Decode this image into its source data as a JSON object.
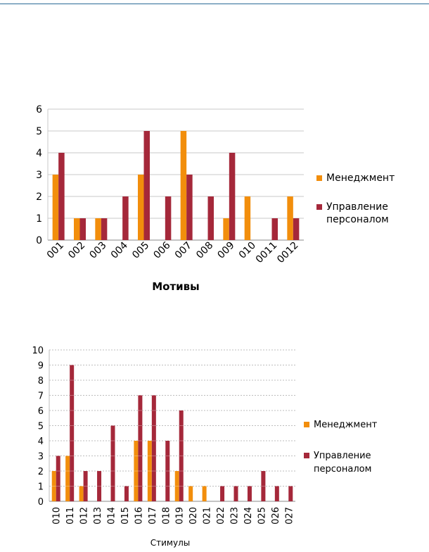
{
  "chart_data": [
    {
      "type": "bar",
      "xlabel": "Мотивы",
      "categories": [
        "001",
        "002",
        "003",
        "004",
        "005",
        "006",
        "007",
        "008",
        "009",
        "010",
        "0011",
        "0012"
      ],
      "series": [
        {
          "name": "Менеджмент",
          "color": "#f28e0c",
          "values": [
            3,
            1,
            1,
            0,
            3,
            0,
            5,
            0,
            1,
            2,
            0,
            2
          ]
        },
        {
          "name": "Управление\nперсоналом",
          "color": "#a5283a",
          "values": [
            4,
            1,
            1,
            2,
            5,
            2,
            3,
            2,
            4,
            0,
            1,
            1
          ]
        }
      ],
      "ylim": [
        0,
        6
      ],
      "yticks": [
        0,
        1,
        2,
        3,
        4,
        5,
        6
      ],
      "grid": true,
      "legend": "right"
    },
    {
      "type": "bar",
      "xlabel": "Стимулы",
      "categories": [
        "010",
        "011",
        "012",
        "013",
        "014",
        "015",
        "016",
        "017",
        "018",
        "019",
        "020",
        "021",
        "022",
        "023",
        "024",
        "025",
        "026",
        "027"
      ],
      "categories_display": [
        "010",
        "011",
        "012",
        "013",
        "014",
        "015",
        "016",
        "017",
        "018",
        "019",
        "020",
        "021",
        "022",
        "023",
        "024",
        "025",
        "026",
        "027"
      ],
      "series": [
        {
          "name": "Менеджмент",
          "color": "#f28e0c",
          "values": [
            2,
            3,
            1,
            0,
            0,
            0,
            4,
            4,
            0,
            2,
            1,
            1,
            0,
            0,
            0,
            0,
            0,
            0
          ]
        },
        {
          "name": "Управление\nперсоналом",
          "color": "#a5283a",
          "values": [
            3,
            9,
            2,
            2,
            5,
            1,
            7,
            7,
            4,
            6,
            0,
            0,
            1,
            1,
            1,
            2,
            1,
            1
          ]
        }
      ],
      "ylim": [
        0,
        10
      ],
      "yticks": [
        0,
        1,
        2,
        3,
        4,
        5,
        6,
        7,
        8,
        9,
        10
      ],
      "grid": true,
      "legend": "right"
    }
  ]
}
